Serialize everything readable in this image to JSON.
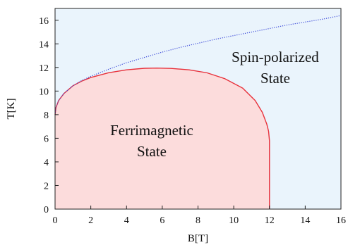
{
  "chart_data": {
    "type": "area",
    "title": "",
    "xlabel": "B[T]",
    "ylabel": "T[K]",
    "xlim": [
      0,
      16
    ],
    "ylim": [
      0,
      17
    ],
    "xticks": [
      "0",
      "2",
      "4",
      "6",
      "8",
      "10",
      "12",
      "14",
      "16"
    ],
    "yticks": [
      "0",
      "2",
      "4",
      "6",
      "8",
      "10",
      "12",
      "14",
      "16"
    ],
    "grid": false,
    "background_color": "#eaf4fc",
    "regions": [
      {
        "label_lines": [
          "Ferrimagnetic",
          "State"
        ],
        "fill_color": "#fcdcdc",
        "boundary_color": "#e8303a",
        "boundary_style": "solid",
        "boundary": {
          "x": [
            0,
            0.05,
            0.2,
            0.5,
            1,
            1.5,
            2,
            3,
            4,
            5,
            5.7,
            6.5,
            7.5,
            8.5,
            9.5,
            10.5,
            11.2,
            11.6,
            11.85,
            11.95,
            12,
            12
          ],
          "y": [
            8.0,
            8.6,
            9.2,
            9.8,
            10.45,
            10.85,
            11.15,
            11.55,
            11.8,
            11.93,
            11.95,
            11.92,
            11.8,
            11.55,
            11.05,
            10.25,
            9.2,
            8.2,
            7.2,
            6.6,
            5.8,
            0
          ]
        }
      },
      {
        "label_lines": [
          "Spin-polarized",
          "State"
        ],
        "boundary_color": "#3a48d8",
        "boundary_style": "dotted",
        "boundary": {
          "x": [
            0,
            0.05,
            0.2,
            0.5,
            1,
            1.5,
            2,
            3,
            4,
            5,
            6,
            7,
            8,
            9,
            10,
            11,
            12,
            13,
            14,
            15,
            16
          ],
          "y": [
            8.0,
            8.6,
            9.2,
            9.8,
            10.45,
            10.9,
            11.25,
            11.85,
            12.4,
            12.85,
            13.3,
            13.7,
            14.05,
            14.4,
            14.7,
            15.0,
            15.3,
            15.6,
            15.85,
            16.1,
            16.4
          ]
        }
      }
    ]
  }
}
